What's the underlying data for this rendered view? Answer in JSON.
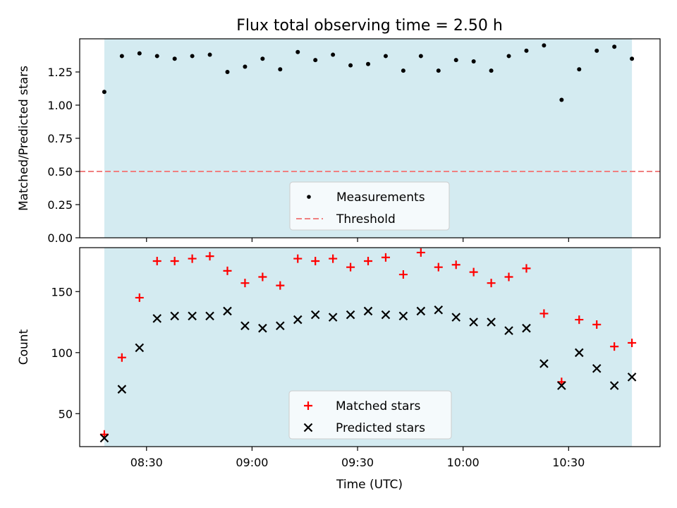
{
  "chart_data": {
    "title": "Flux total observing time = 2.50 h",
    "xlabel": "Time (UTC)",
    "x_tick_labels": [
      "08:30",
      "09:00",
      "09:30",
      "10:00",
      "10:30"
    ],
    "x_tick_minutes": [
      510,
      540,
      570,
      600,
      630
    ],
    "xlim_minutes": [
      491,
      656
    ],
    "observing_window_minutes": [
      498,
      648
    ],
    "times": [
      "08:18",
      "08:23",
      "08:28",
      "08:33",
      "08:38",
      "08:43",
      "08:48",
      "08:53",
      "08:58",
      "09:03",
      "09:08",
      "09:13",
      "09:18",
      "09:23",
      "09:28",
      "09:33",
      "09:38",
      "09:43",
      "09:48",
      "09:53",
      "09:58",
      "10:03",
      "10:08",
      "10:13",
      "10:18",
      "10:23",
      "10:28",
      "10:33",
      "10:38",
      "10:43",
      "10:48"
    ],
    "panels": [
      {
        "type": "scatter",
        "ylabel": "Matched/Predicted stars",
        "ylim": [
          0,
          1.5
        ],
        "yticks": [
          0.0,
          0.25,
          0.5,
          0.75,
          1.0,
          1.25
        ],
        "ytick_labels": [
          "0.00",
          "0.25",
          "0.50",
          "0.75",
          "1.00",
          "1.25"
        ],
        "threshold": 0.5,
        "legend_position": "lower-center",
        "series": [
          {
            "name": "Measurements",
            "marker": "dot",
            "color": "#000000",
            "values": [
              1.1,
              1.37,
              1.39,
              1.37,
              1.35,
              1.37,
              1.38,
              1.25,
              1.29,
              1.35,
              1.27,
              1.4,
              1.34,
              1.38,
              1.3,
              1.31,
              1.37,
              1.26,
              1.37,
              1.26,
              1.34,
              1.33,
              1.26,
              1.37,
              1.41,
              1.45,
              1.04,
              1.27,
              1.41,
              1.44,
              1.35
            ]
          },
          {
            "name": "Threshold",
            "marker": "dashed-line",
            "color": "#f08080"
          }
        ]
      },
      {
        "type": "scatter",
        "ylabel": "Count",
        "ylim": [
          23,
          186
        ],
        "yticks": [
          50,
          100,
          150
        ],
        "ytick_labels": [
          "50",
          "100",
          "150"
        ],
        "legend_position": "lower-center",
        "series": [
          {
            "name": "Matched stars",
            "marker": "plus",
            "color": "#ff0000",
            "values": [
              33,
              96,
              145,
              175,
              175,
              177,
              179,
              167,
              157,
              162,
              155,
              177,
              175,
              177,
              170,
              175,
              178,
              164,
              182,
              170,
              172,
              166,
              157,
              162,
              169,
              132,
              76,
              127,
              123,
              105,
              108
            ]
          },
          {
            "name": "Predicted stars",
            "marker": "x",
            "color": "#000000",
            "values": [
              30,
              70,
              104,
              128,
              130,
              130,
              130,
              134,
              122,
              120,
              122,
              127,
              131,
              129,
              131,
              134,
              131,
              130,
              134,
              135,
              129,
              125,
              125,
              118,
              120,
              91,
              73,
              100,
              87,
              73,
              80
            ]
          }
        ]
      }
    ],
    "colors": {
      "window_fill": "#d4ebf1",
      "legend_bg": "#f5fafc"
    }
  }
}
